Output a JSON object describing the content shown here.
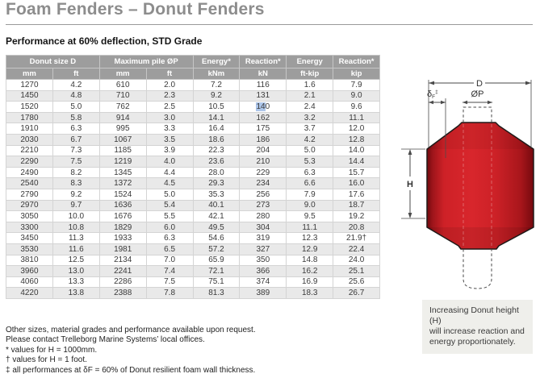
{
  "page": {
    "title": "Foam Fenders – Donut Fenders",
    "subtitle": "Performance at 60% deflection, STD Grade"
  },
  "colors": {
    "title_gray": "#8d8d8d",
    "table_header_gray": "#9d9d9d",
    "row_stripe_gray": "#e9e9e9",
    "selection_blue": "#adc6ea",
    "fender_red": "#d0232a",
    "caption_bg": "#efefeb"
  },
  "table": {
    "col_groups": [
      {
        "label": "Donut size D",
        "span": 2
      },
      {
        "label": "Maximum pile ØP",
        "span": 2
      },
      {
        "label": "Energy*",
        "span": 1
      },
      {
        "label": "Reaction*",
        "span": 1
      },
      {
        "label": "Energy",
        "span": 1
      },
      {
        "label": "Reaction*",
        "span": 1
      }
    ],
    "units": [
      "mm",
      "ft",
      "mm",
      "ft",
      "kNm",
      "kN",
      "ft-kip",
      "kip"
    ],
    "rows": [
      [
        "1270",
        "4.2",
        "610",
        "2.0",
        "7.2",
        "116",
        "1.6",
        "7.9"
      ],
      [
        "1450",
        "4.8",
        "710",
        "2.3",
        "9.2",
        "131",
        "2.1",
        "9.0"
      ],
      [
        "1520",
        "5.0",
        "762",
        "2.5",
        "10.5",
        "140",
        "2.4",
        "9.6"
      ],
      [
        "1780",
        "5.8",
        "914",
        "3.0",
        "14.1",
        "162",
        "3.2",
        "11.1"
      ],
      [
        "1910",
        "6.3",
        "995",
        "3.3",
        "16.4",
        "175",
        "3.7",
        "12.0"
      ],
      [
        "2030",
        "6.7",
        "1067",
        "3.5",
        "18.6",
        "186",
        "4.2",
        "12.8"
      ],
      [
        "2210",
        "7.3",
        "1185",
        "3.9",
        "22.3",
        "204",
        "5.0",
        "14.0"
      ],
      [
        "2290",
        "7.5",
        "1219",
        "4.0",
        "23.6",
        "210",
        "5.3",
        "14.4"
      ],
      [
        "2490",
        "8.2",
        "1345",
        "4.4",
        "28.0",
        "229",
        "6.3",
        "15.7"
      ],
      [
        "2540",
        "8.3",
        "1372",
        "4.5",
        "29.3",
        "234",
        "6.6",
        "16.0"
      ],
      [
        "2790",
        "9.2",
        "1524",
        "5.0",
        "35.3",
        "256",
        "7.9",
        "17.6"
      ],
      [
        "2970",
        "9.7",
        "1636",
        "5.4",
        "40.1",
        "273",
        "9.0",
        "18.7"
      ],
      [
        "3050",
        "10.0",
        "1676",
        "5.5",
        "42.1",
        "280",
        "9.5",
        "19.2"
      ],
      [
        "3300",
        "10.8",
        "1829",
        "6.0",
        "49.5",
        "304",
        "11.1",
        "20.8"
      ],
      [
        "3450",
        "11.3",
        "1933",
        "6.3",
        "54.6",
        "319",
        "12.3",
        "21.9†"
      ],
      [
        "3530",
        "11.6",
        "1981",
        "6.5",
        "57.2",
        "327",
        "12.9",
        "22.4"
      ],
      [
        "3810",
        "12.5",
        "2134",
        "7.0",
        "65.9",
        "350",
        "14.8",
        "24.0"
      ],
      [
        "3960",
        "13.0",
        "2241",
        "7.4",
        "72.1",
        "366",
        "16.2",
        "25.1"
      ],
      [
        "4060",
        "13.3",
        "2286",
        "7.5",
        "75.1",
        "374",
        "16.9",
        "25.6"
      ],
      [
        "4220",
        "13.8",
        "2388",
        "7.8",
        "81.3",
        "389",
        "18.3",
        "26.7"
      ]
    ],
    "selection": {
      "row_index": 2,
      "col_index": 5,
      "selected": "14",
      "rest": "0"
    }
  },
  "diagram": {
    "labels": {
      "d": "D",
      "op": "ØP",
      "h": "H",
      "df_delta": "δ",
      "df_sub": "F",
      "df_sup": "‡"
    },
    "caption_lines": [
      "Increasing Donut height (H)",
      "will increase reaction and",
      "energy proportionately."
    ]
  },
  "footnotes": [
    "Other sizes, material grades and performance available upon request.",
    "Please contact Trelleborg Marine Systems’ local offices.",
    "* values for H = 1000mm.",
    "† values for H = 1 foot.",
    "‡ all performances at δF = 60% of Donut resilient foam wall thickness."
  ]
}
